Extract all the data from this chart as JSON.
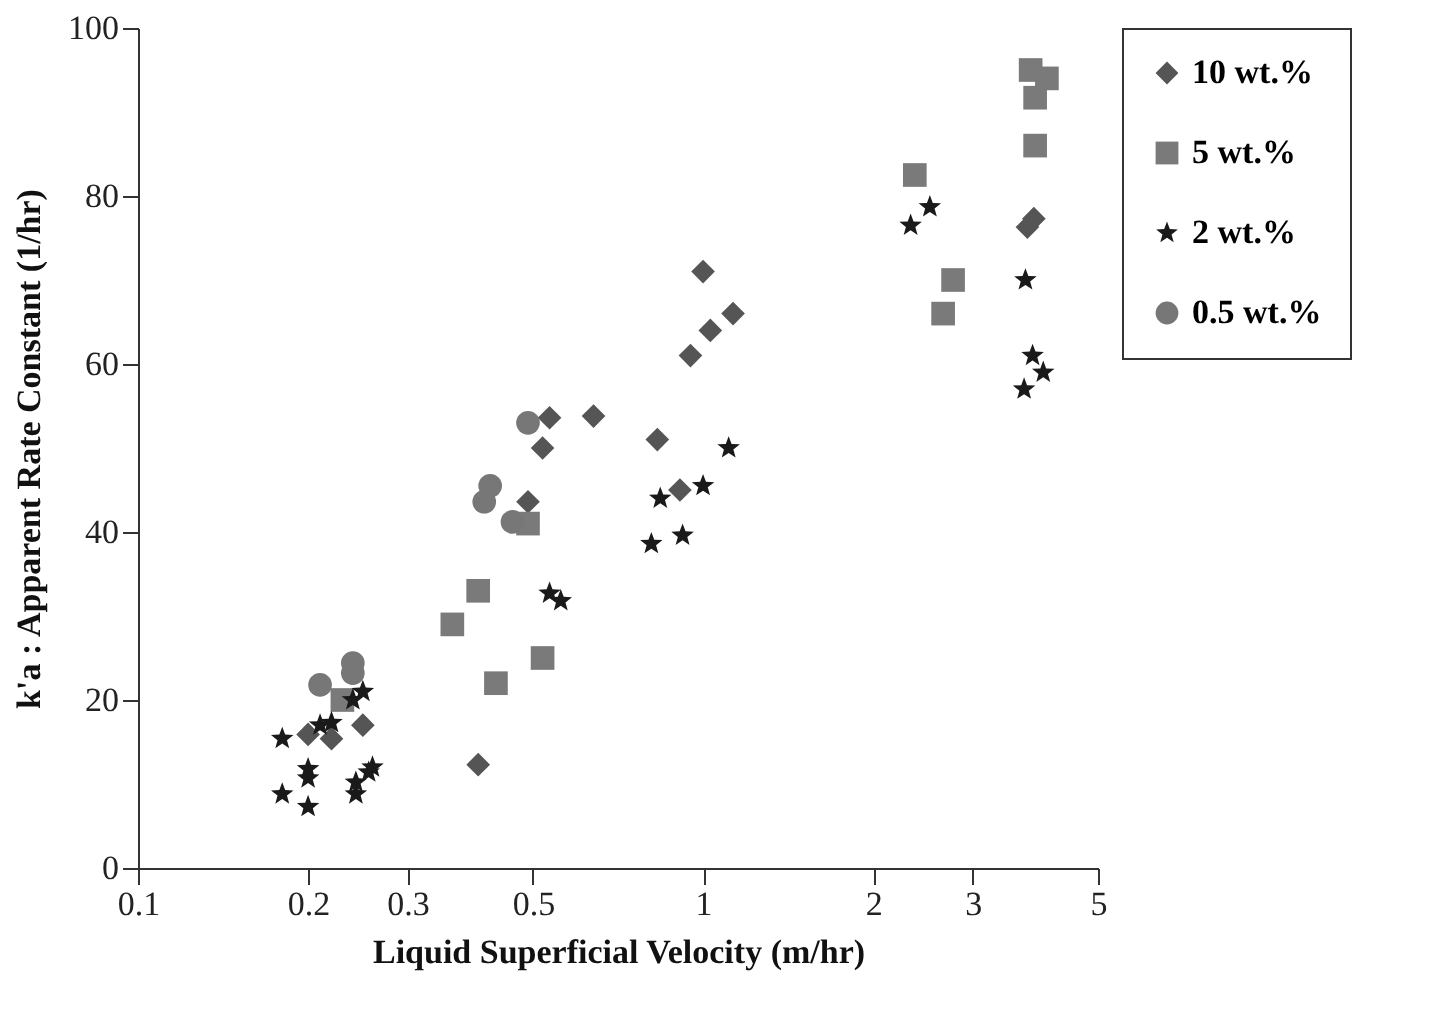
{
  "chart_data": {
    "type": "scatter",
    "xlabel": "Liquid Superficial Velocity  (m/hr)",
    "ylabel": "k'a :  Apparent Rate Constant (1/hr)",
    "log": "x",
    "xlim": [
      0.1,
      5
    ],
    "xticks": [
      0.1,
      0.2,
      0.3,
      0.5,
      1,
      2,
      3,
      5
    ],
    "ylim": [
      0,
      100
    ],
    "yticks": [
      0,
      20,
      40,
      60,
      80,
      100
    ],
    "grid": false,
    "legend": "right",
    "series": [
      {
        "name": "10 wt.%",
        "color": "#555555",
        "marker": "diamond",
        "x": [
          0.4,
          1.0,
          1.03,
          0.95,
          1.13,
          0.64,
          0.535,
          0.52,
          0.83,
          0.91,
          0.49,
          0.25,
          0.22,
          0.2,
          3.75,
          3.85
        ],
        "values": [
          12.3,
          71,
          64,
          61,
          66,
          53.8,
          53.6,
          50,
          51,
          45,
          43.6,
          17,
          15.4,
          15.9,
          76.3,
          77.3
        ]
      },
      {
        "name": "5 wt.%",
        "color": "#7a7a7a",
        "marker": "square",
        "x": [
          0.4,
          0.36,
          0.52,
          0.43,
          0.49,
          2.37,
          2.77,
          2.66,
          3.87,
          3.8,
          4.06,
          3.87,
          0.23
        ],
        "values": [
          33,
          29,
          25,
          22,
          41,
          82.5,
          70,
          66,
          86,
          95,
          94,
          91.7,
          20
        ]
      },
      {
        "name": "2 wt.%",
        "color": "#1a1a1a",
        "marker": "star",
        "x": [
          2.52,
          2.33,
          3.72,
          3.83,
          4.0,
          3.7,
          1.11,
          1.0,
          0.84,
          0.81,
          0.92,
          0.535,
          0.56,
          0.18,
          0.18,
          0.2,
          0.2,
          0.2,
          0.243,
          0.243,
          0.256,
          0.26,
          0.25,
          0.24,
          0.22,
          0.21
        ],
        "values": [
          78.7,
          76.5,
          70,
          61,
          59,
          57,
          50,
          45.5,
          44,
          38.6,
          39.6,
          32.7,
          31.8,
          15.4,
          8.8,
          11.8,
          10.7,
          7.3,
          8.8,
          10.2,
          11.4,
          12,
          21,
          20,
          17.3,
          17
        ]
      },
      {
        "name": "0.5 wt.%",
        "color": "#777777",
        "marker": "circle",
        "x": [
          0.21,
          0.24,
          0.24,
          0.42,
          0.41,
          0.46,
          0.49
        ],
        "values": [
          21.8,
          24.4,
          23.2,
          45.5,
          43.6,
          41.2,
          53
        ]
      }
    ]
  }
}
